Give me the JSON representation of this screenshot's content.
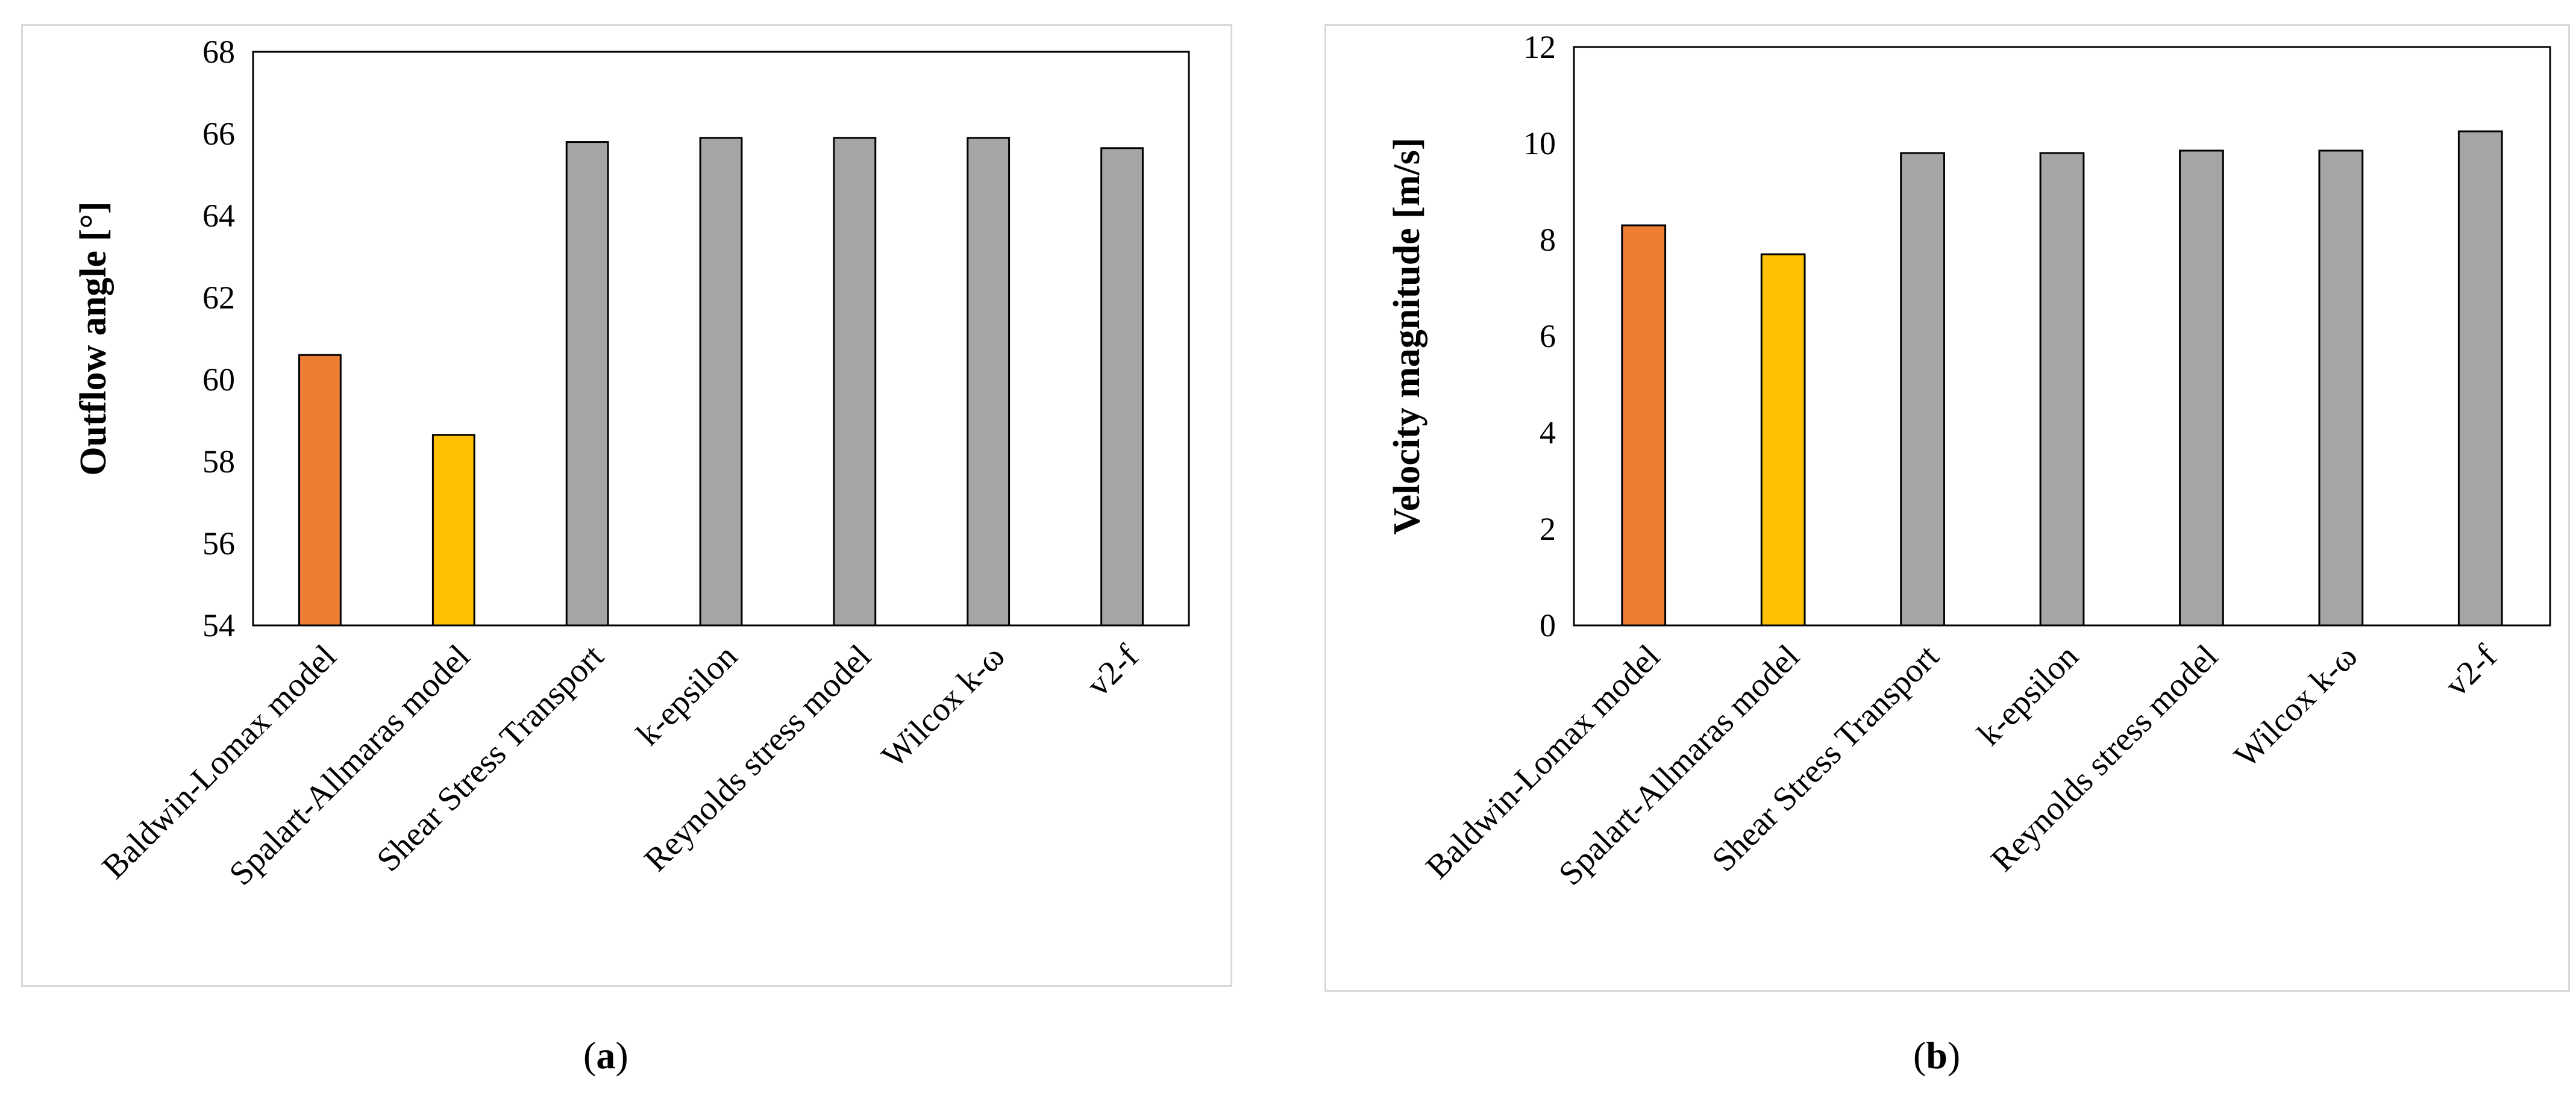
{
  "chart_data": [
    {
      "type": "bar",
      "panel_label": "a",
      "title": "",
      "xlabel": "",
      "ylabel": "Outflow angle [°]",
      "ylim": [
        54,
        68
      ],
      "ytick_step": 2,
      "grid": false,
      "categories": [
        "Baldwin-Lomax model",
        "Spalart-Allmaras model",
        "Shear Stress Transport",
        "k-epsilon",
        "Reynolds stress model",
        "Wilcox k-ω",
        "v2-f"
      ],
      "values": [
        60.6,
        58.65,
        65.8,
        65.9,
        65.9,
        65.9,
        65.65
      ],
      "colors": [
        "#ED7D31",
        "#FFC000",
        "#A5A5A5",
        "#A5A5A5",
        "#A5A5A5",
        "#A5A5A5",
        "#A5A5A5"
      ]
    },
    {
      "type": "bar",
      "panel_label": "b",
      "title": "",
      "xlabel": "",
      "ylabel": "Velocity magnitude [m/s]",
      "ylim": [
        0,
        12
      ],
      "ytick_step": 2,
      "grid": false,
      "categories": [
        "Baldwin-Lomax model",
        "Spalart-Allmaras model",
        "Shear Stress Transport",
        "k-epsilon",
        "Reynolds stress model",
        "Wilcox k-ω",
        "v2-f"
      ],
      "values": [
        8.3,
        7.7,
        9.8,
        9.8,
        9.85,
        9.85,
        10.25
      ],
      "colors": [
        "#ED7D31",
        "#FFC000",
        "#A5A5A5",
        "#A5A5A5",
        "#A5A5A5",
        "#A5A5A5",
        "#A5A5A5"
      ]
    }
  ]
}
